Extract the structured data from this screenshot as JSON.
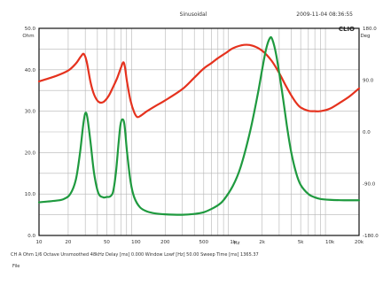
{
  "chart_data": {
    "type": "line",
    "title": "Sinusoidal",
    "timestamp": "2009-11-04 08:36:55",
    "brand": "CLIO",
    "xscale": "log",
    "xlim": [
      10,
      20000
    ],
    "x_ticks": [
      "10",
      "20",
      "50",
      "100",
      "200",
      "500",
      "1k",
      "2k",
      "5k",
      "10k",
      "20k"
    ],
    "x_tick_values": [
      10,
      20,
      50,
      100,
      200,
      500,
      1000,
      2000,
      5000,
      10000,
      20000
    ],
    "x_extra_label": "Hz",
    "left_axis": {
      "unit": "Ohm",
      "ylim": [
        0,
        50
      ],
      "ticks": [
        "50.0",
        "40.0",
        "30.0",
        "20.0",
        "10.0",
        "0.0"
      ],
      "tick_values": [
        50,
        40,
        30,
        20,
        10,
        0
      ]
    },
    "right_axis": {
      "unit": "Deg",
      "ylim": [
        -180,
        180
      ],
      "ticks": [
        "180.0",
        "90.0",
        "0.0",
        "-90.0",
        "-180.0"
      ],
      "tick_values": [
        180,
        90,
        0,
        -90,
        -180
      ]
    },
    "grid": true,
    "series": [
      {
        "axis": "left",
        "color": "#e5321e",
        "points": [
          [
            10,
            37.2
          ],
          [
            15,
            38.5
          ],
          [
            20,
            39.8
          ],
          [
            24,
            41.5
          ],
          [
            27,
            43.2
          ],
          [
            29,
            43.8
          ],
          [
            31,
            42.0
          ],
          [
            34,
            37.0
          ],
          [
            37,
            34.0
          ],
          [
            41,
            32.3
          ],
          [
            46,
            32.2
          ],
          [
            52,
            33.6
          ],
          [
            58,
            35.8
          ],
          [
            64,
            38.0
          ],
          [
            70,
            40.5
          ],
          [
            74,
            41.8
          ],
          [
            77,
            40.6
          ],
          [
            81,
            37.0
          ],
          [
            88,
            32.5
          ],
          [
            96,
            29.7
          ],
          [
            103,
            28.6
          ],
          [
            112,
            28.9
          ],
          [
            130,
            30.0
          ],
          [
            160,
            31.3
          ],
          [
            200,
            32.6
          ],
          [
            300,
            35.3
          ],
          [
            400,
            38.1
          ],
          [
            500,
            40.3
          ],
          [
            600,
            41.6
          ],
          [
            700,
            42.8
          ],
          [
            850,
            44.1
          ],
          [
            1000,
            45.2
          ],
          [
            1300,
            46.0
          ],
          [
            1600,
            45.8
          ],
          [
            2000,
            44.6
          ],
          [
            2500,
            42.2
          ],
          [
            3000,
            39.2
          ],
          [
            3500,
            36.2
          ],
          [
            4000,
            33.8
          ],
          [
            4500,
            32.0
          ],
          [
            5000,
            30.9
          ],
          [
            6000,
            30.1
          ],
          [
            7000,
            30.0
          ],
          [
            8000,
            30.0
          ],
          [
            10000,
            30.6
          ],
          [
            13000,
            32.2
          ],
          [
            16000,
            33.6
          ],
          [
            20000,
            35.5
          ]
        ]
      },
      {
        "axis": "left",
        "color": "#1f9a3f",
        "points": [
          [
            10,
            8.0
          ],
          [
            15,
            8.4
          ],
          [
            18,
            8.8
          ],
          [
            21,
            10.0
          ],
          [
            24,
            13.5
          ],
          [
            26.5,
            20.0
          ],
          [
            28.5,
            26.5
          ],
          [
            30,
            29.5
          ],
          [
            31.5,
            28.5
          ],
          [
            34,
            22.5
          ],
          [
            37,
            15.0
          ],
          [
            41,
            10.2
          ],
          [
            46,
            9.2
          ],
          [
            50,
            9.3
          ],
          [
            54,
            9.4
          ],
          [
            58,
            10.5
          ],
          [
            62,
            15.0
          ],
          [
            66,
            22.0
          ],
          [
            69,
            26.5
          ],
          [
            72,
            28.0
          ],
          [
            76,
            26.8
          ],
          [
            81,
            20.0
          ],
          [
            88,
            13.0
          ],
          [
            96,
            9.2
          ],
          [
            110,
            6.8
          ],
          [
            130,
            5.8
          ],
          [
            160,
            5.3
          ],
          [
            200,
            5.1
          ],
          [
            300,
            5.0
          ],
          [
            400,
            5.2
          ],
          [
            500,
            5.6
          ],
          [
            600,
            6.4
          ],
          [
            700,
            7.3
          ],
          [
            800,
            8.5
          ],
          [
            1000,
            12.0
          ],
          [
            1200,
            16.5
          ],
          [
            1500,
            25.0
          ],
          [
            1800,
            34.0
          ],
          [
            2000,
            40.0
          ],
          [
            2200,
            45.0
          ],
          [
            2400,
            47.6
          ],
          [
            2550,
            47.3
          ],
          [
            2800,
            43.5
          ],
          [
            3200,
            35.0
          ],
          [
            3600,
            26.5
          ],
          [
            4000,
            20.0
          ],
          [
            4500,
            15.0
          ],
          [
            5000,
            12.2
          ],
          [
            6000,
            10.0
          ],
          [
            7000,
            9.2
          ],
          [
            8000,
            8.8
          ],
          [
            10000,
            8.6
          ],
          [
            14000,
            8.5
          ],
          [
            20000,
            8.5
          ]
        ]
      }
    ],
    "footer": {
      "status_line": "CH A   Ohm   1/6 Octave   Unsmoothed   48kHz   Delay [ms] 0.000   Window Lowf [Hz] 50.00   Sweep Time [ms] 1365.37",
      "file_label": "File"
    }
  }
}
